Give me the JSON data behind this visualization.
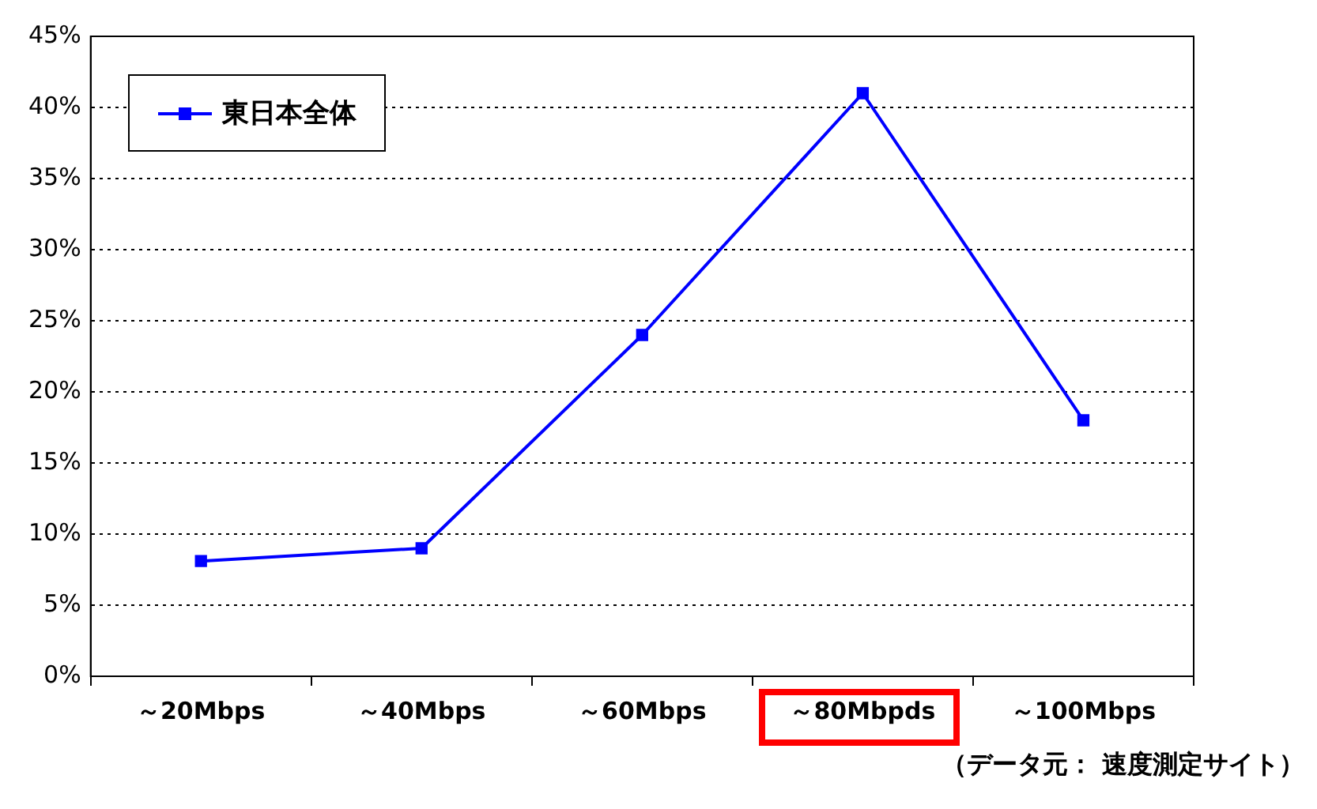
{
  "chart_data": {
    "type": "line",
    "categories": [
      "～20Mbps",
      "～40Mbps",
      "～60Mbps",
      "～80Mbpds",
      "～100Mbps"
    ],
    "series": [
      {
        "name": "東日本全体",
        "color": "#0000ff",
        "values": [
          8.1,
          9,
          24,
          41,
          18
        ]
      }
    ],
    "ylim": [
      0,
      45
    ],
    "yticks": [
      {
        "value": 0,
        "label": "0%"
      },
      {
        "value": 5,
        "label": "5%"
      },
      {
        "value": 10,
        "label": "10%"
      },
      {
        "value": 15,
        "label": "15%"
      },
      {
        "value": 20,
        "label": "20%"
      },
      {
        "value": 25,
        "label": "25%"
      },
      {
        "value": 30,
        "label": "30%"
      },
      {
        "value": 35,
        "label": "35%"
      },
      {
        "value": 40,
        "label": "40%"
      },
      {
        "value": 45,
        "label": "45%"
      }
    ],
    "grid": "y",
    "legend": "top left",
    "marker": "square",
    "line_style": "solid",
    "annotations": [
      "（データ元： 速度測定サイト）"
    ]
  }
}
